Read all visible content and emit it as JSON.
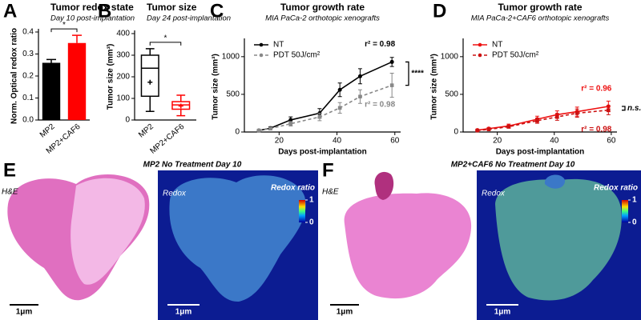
{
  "chart_data": [
    {
      "type": "bar",
      "panel": "A",
      "title": "Tumor redox state",
      "subtitle": "Day 10 post-implantation",
      "ylabel": "Norm. Optical redox ratio",
      "categories": [
        "MP2",
        "MP2+CAF6"
      ],
      "values": [
        0.26,
        0.35
      ],
      "errors": [
        0.015,
        0.035
      ],
      "colors": [
        "#000000",
        "#ff0000"
      ],
      "ylim": [
        0,
        0.4
      ],
      "yticks": [
        {
          "value": 0,
          "label": "0.0"
        },
        0.1,
        0.2,
        0.3,
        0.4
      ],
      "significance": "*"
    },
    {
      "type": "box",
      "panel": "B",
      "title": "Tumor size",
      "subtitle": "Day 24 post-implantation",
      "ylabel": "Tumor size (mm³)",
      "categories": [
        "MP2",
        "MP2+CAF6"
      ],
      "boxes": [
        {
          "min": 40,
          "q1": 110,
          "median": 240,
          "q3": 300,
          "max": 330,
          "mean": 175
        },
        {
          "min": 20,
          "q1": 50,
          "median": 70,
          "q3": 85,
          "max": 115,
          "mean": 65
        }
      ],
      "colors": [
        "#000000",
        "#ff0000"
      ],
      "ylim": [
        0,
        400
      ],
      "yticks": [
        0,
        100,
        200,
        300,
        400
      ],
      "significance": "*"
    },
    {
      "type": "line",
      "panel": "C",
      "title": "Tumor growth rate",
      "subtitle": "MIA PaCa-2 orthotopic xenografts",
      "xlabel": "Days post-implantation",
      "ylabel": "Tumor size (mm³)",
      "x": [
        13,
        17,
        24,
        34,
        41,
        48,
        59
      ],
      "xlim": [
        8,
        62
      ],
      "xticks": [
        20,
        40,
        60
      ],
      "ylim": [
        0,
        1200
      ],
      "yticks": [
        0,
        500,
        1000
      ],
      "series": [
        {
          "name": "NT",
          "color": "#000000",
          "style": "solid",
          "values": [
            20,
            50,
            160,
            250,
            560,
            740,
            930
          ],
          "errors": [
            10,
            20,
            40,
            60,
            90,
            100,
            60
          ],
          "r2_label": "r² = 0.98"
        },
        {
          "name": "PDT 50J/cm²",
          "color": "#888888",
          "style": "dashed",
          "values": [
            20,
            45,
            110,
            200,
            320,
            470,
            620
          ],
          "errors": [
            10,
            15,
            30,
            50,
            70,
            90,
            160
          ],
          "r2_label": "r² = 0.98"
        }
      ],
      "significance": "****"
    },
    {
      "type": "line",
      "panel": "D",
      "title": "Tumor growth rate",
      "subtitle": "MIA PaCa-2+CAF6 orthotopic xenografts",
      "xlabel": "Days post-implantation",
      "ylabel": "Tumor size (mm³)",
      "x": [
        13,
        17,
        24,
        34,
        41,
        48,
        59
      ],
      "xlim": [
        8,
        62
      ],
      "xticks": [
        20,
        40,
        60
      ],
      "ylim": [
        0,
        1200
      ],
      "yticks": [
        0,
        500,
        1000
      ],
      "series": [
        {
          "name": "NT",
          "color": "#ee1111",
          "style": "solid",
          "values": [
            25,
            45,
            80,
            170,
            230,
            270,
            340
          ],
          "errors": [
            8,
            15,
            25,
            40,
            50,
            60,
            70
          ],
          "r2_label": "r² = 0.96"
        },
        {
          "name": "PDT 50J/cm²",
          "color": "#cc1111",
          "style": "dashed",
          "values": [
            20,
            35,
            70,
            150,
            200,
            250,
            290
          ],
          "errors": [
            8,
            12,
            20,
            35,
            45,
            55,
            60
          ],
          "r2_label": "r² = 0.98"
        }
      ],
      "significance": "n.s."
    }
  ],
  "images": [
    {
      "panel": "E",
      "title": "MP2 No Treatment Day 10",
      "he_label": "H&E",
      "redox_label": "Redox",
      "colorbar_title": "Redox ratio",
      "colorbar_ticks": [
        0,
        1
      ],
      "he_scale": "1μm",
      "redox_scale": "1μm"
    },
    {
      "panel": "F",
      "title": "MP2+CAF6 No Treatment Day 10",
      "he_label": "H&E",
      "redox_label": "Redox",
      "colorbar_title": "Redox ratio",
      "colorbar_ticks": [
        0,
        1
      ],
      "he_scale": "1μm",
      "redox_scale": "1μm"
    }
  ]
}
